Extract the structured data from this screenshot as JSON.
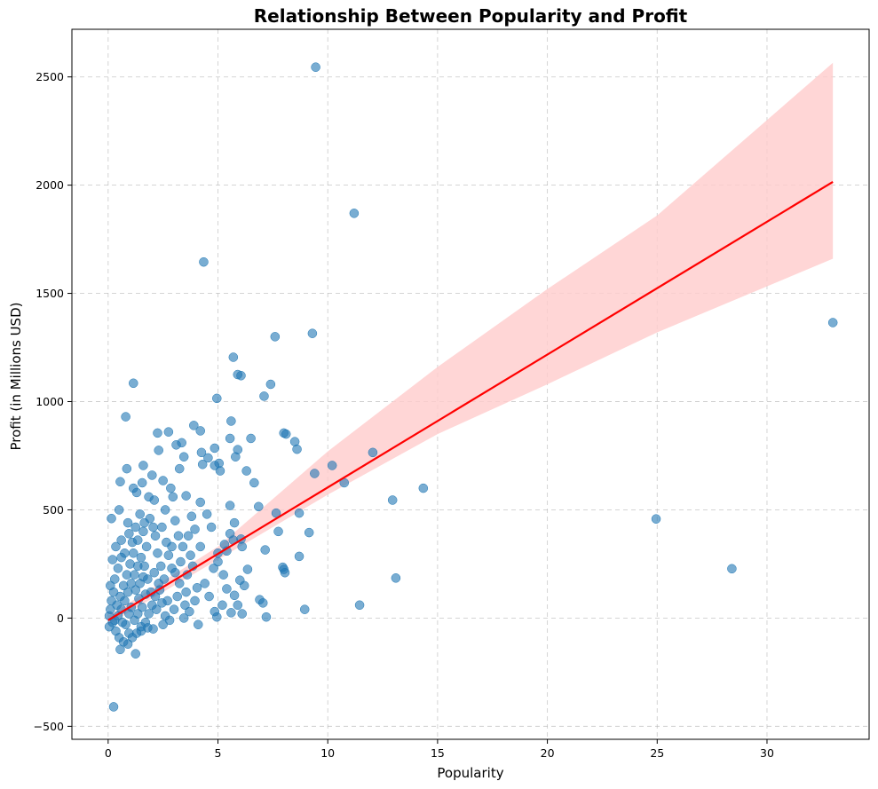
{
  "chart_data": {
    "type": "scatter",
    "title": "Relationship Between Popularity and Profit",
    "xlabel": "Popularity",
    "ylabel": "Profit (in Millions USD)",
    "xlim": [
      -1.65,
      34.65
    ],
    "ylim": [
      -560,
      2720
    ],
    "xticks": [
      0,
      5,
      10,
      15,
      20,
      25,
      30
    ],
    "yticks": [
      -500,
      0,
      500,
      1000,
      1500,
      2000,
      2500
    ],
    "ytick_labels": [
      "−500",
      "0",
      "500",
      "1000",
      "1500",
      "2000",
      "2500"
    ],
    "grid": true,
    "colors": {
      "points": "#1f77b4",
      "regression_line": "#ff0000",
      "confidence_band": "#ffcccc"
    },
    "regression": {
      "x_range": [
        0,
        33
      ],
      "line": [
        [
          0,
          -10
        ],
        [
          33,
          2015
        ]
      ],
      "ci_upper": [
        [
          0,
          10
        ],
        [
          5,
          330
        ],
        [
          10,
          770
        ],
        [
          15,
          1160
        ],
        [
          20,
          1520
        ],
        [
          25,
          1860
        ],
        [
          33,
          2565
        ]
      ],
      "ci_lower": [
        [
          0,
          -30
        ],
        [
          5,
          270
        ],
        [
          10,
          570
        ],
        [
          15,
          850
        ],
        [
          20,
          1080
        ],
        [
          25,
          1320
        ],
        [
          33,
          1660
        ]
      ]
    },
    "points": [
      [
        9.45,
        2545
      ],
      [
        11.2,
        1870
      ],
      [
        4.35,
        1645
      ],
      [
        33.0,
        1365
      ],
      [
        9.3,
        1315
      ],
      [
        7.6,
        1300
      ],
      [
        5.7,
        1205
      ],
      [
        5.9,
        1125
      ],
      [
        6.05,
        1120
      ],
      [
        1.15,
        1085
      ],
      [
        7.4,
        1080
      ],
      [
        7.1,
        1025
      ],
      [
        4.95,
        1015
      ],
      [
        0.8,
        930
      ],
      [
        5.6,
        910
      ],
      [
        3.9,
        890
      ],
      [
        2.25,
        855
      ],
      [
        2.75,
        860
      ],
      [
        4.2,
        865
      ],
      [
        8.1,
        850
      ],
      [
        8.0,
        855
      ],
      [
        6.5,
        830
      ],
      [
        5.55,
        830
      ],
      [
        8.5,
        815
      ],
      [
        3.1,
        800
      ],
      [
        3.35,
        810
      ],
      [
        4.85,
        785
      ],
      [
        8.6,
        780
      ],
      [
        2.3,
        775
      ],
      [
        5.9,
        778
      ],
      [
        4.25,
        765
      ],
      [
        4.55,
        740
      ],
      [
        3.45,
        745
      ],
      [
        5.05,
        715
      ],
      [
        4.3,
        710
      ],
      [
        5.8,
        745
      ],
      [
        4.85,
        705
      ],
      [
        12.05,
        765
      ],
      [
        10.2,
        705
      ],
      [
        1.6,
        705
      ],
      [
        0.85,
        690
      ],
      [
        3.25,
        690
      ],
      [
        5.1,
        680
      ],
      [
        6.3,
        680
      ],
      [
        9.4,
        668
      ],
      [
        2.0,
        660
      ],
      [
        6.65,
        625
      ],
      [
        10.75,
        625
      ],
      [
        0.55,
        630
      ],
      [
        1.55,
        625
      ],
      [
        2.5,
        635
      ],
      [
        1.15,
        600
      ],
      [
        14.35,
        600
      ],
      [
        1.3,
        580
      ],
      [
        12.95,
        545
      ],
      [
        4.2,
        535
      ],
      [
        2.1,
        545
      ],
      [
        1.85,
        560
      ],
      [
        3.55,
        565
      ],
      [
        5.55,
        520
      ],
      [
        6.85,
        515
      ],
      [
        0.15,
        460
      ],
      [
        0.5,
        500
      ],
      [
        7.65,
        485
      ],
      [
        8.7,
        485
      ],
      [
        24.95,
        458
      ],
      [
        5.75,
        440
      ],
      [
        7.75,
        400
      ],
      [
        9.15,
        395
      ],
      [
        5.55,
        390
      ],
      [
        6.05,
        365
      ],
      [
        6.1,
        330
      ],
      [
        7.15,
        315
      ],
      [
        8.7,
        285
      ],
      [
        7.95,
        235
      ],
      [
        8.0,
        225
      ],
      [
        8.05,
        210
      ],
      [
        6.35,
        225
      ],
      [
        6.2,
        150
      ],
      [
        28.4,
        228
      ],
      [
        13.1,
        185
      ],
      [
        6.9,
        85
      ],
      [
        7.05,
        70
      ],
      [
        11.45,
        60
      ],
      [
        8.95,
        40
      ],
      [
        7.2,
        5
      ],
      [
        6.1,
        20
      ],
      [
        5.6,
        25
      ],
      [
        0.25,
        -410
      ],
      [
        1.25,
        -165
      ],
      [
        0.55,
        -145
      ],
      [
        5.0,
        300
      ],
      [
        5.3,
        340
      ],
      [
        5.4,
        310
      ],
      [
        5.7,
        360
      ],
      [
        5.0,
        260
      ],
      [
        4.8,
        230
      ],
      [
        5.25,
        200
      ],
      [
        6.0,
        175
      ],
      [
        5.4,
        135
      ],
      [
        5.75,
        105
      ],
      [
        5.9,
        60
      ],
      [
        5.2,
        60
      ],
      [
        4.85,
        30
      ],
      [
        4.95,
        5
      ],
      [
        4.6,
        100
      ],
      [
        4.4,
        160
      ],
      [
        4.7,
        420
      ],
      [
        4.5,
        480
      ],
      [
        3.8,
        470
      ],
      [
        3.95,
        410
      ],
      [
        4.2,
        330
      ],
      [
        3.75,
        290
      ],
      [
        3.85,
        240
      ],
      [
        3.6,
        200
      ],
      [
        4.05,
        140
      ],
      [
        3.95,
        80
      ],
      [
        3.7,
        30
      ],
      [
        3.45,
        0
      ],
      [
        4.1,
        -30
      ],
      [
        3.55,
        120
      ],
      [
        3.3,
        260
      ],
      [
        3.2,
        380
      ],
      [
        3.05,
        450
      ],
      [
        2.95,
        560
      ],
      [
        2.85,
        600
      ],
      [
        2.6,
        500
      ],
      [
        2.45,
        420
      ],
      [
        2.65,
        350
      ],
      [
        2.75,
        290
      ],
      [
        2.9,
        230
      ],
      [
        2.55,
        180
      ],
      [
        2.35,
        130
      ],
      [
        2.7,
        80
      ],
      [
        2.2,
        40
      ],
      [
        2.5,
        -30
      ],
      [
        2.05,
        -50
      ],
      [
        1.75,
        330
      ],
      [
        1.6,
        400
      ],
      [
        1.45,
        480
      ],
      [
        1.9,
        460
      ],
      [
        2.15,
        380
      ],
      [
        1.35,
        360
      ],
      [
        1.1,
        350
      ],
      [
        0.95,
        390
      ],
      [
        0.75,
        300
      ],
      [
        0.6,
        280
      ],
      [
        0.45,
        230
      ],
      [
        0.3,
        180
      ],
      [
        0.25,
        120
      ],
      [
        0.15,
        80
      ],
      [
        0.1,
        40
      ],
      [
        0.05,
        10
      ],
      [
        0.2,
        -20
      ],
      [
        0.35,
        -60
      ],
      [
        0.5,
        -90
      ],
      [
        0.7,
        -110
      ],
      [
        0.9,
        -120
      ],
      [
        1.1,
        -90
      ],
      [
        1.3,
        -70
      ],
      [
        1.5,
        -40
      ],
      [
        1.7,
        -20
      ],
      [
        1.85,
        20
      ],
      [
        2.0,
        60
      ],
      [
        1.95,
        120
      ],
      [
        1.8,
        180
      ],
      [
        1.65,
        240
      ],
      [
        1.5,
        280
      ],
      [
        1.35,
        240
      ],
      [
        1.2,
        200
      ],
      [
        1.05,
        160
      ],
      [
        0.9,
        120
      ],
      [
        0.75,
        80
      ],
      [
        0.6,
        40
      ],
      [
        0.45,
        10
      ],
      [
        0.3,
        -10
      ],
      [
        0.4,
        60
      ],
      [
        0.55,
        100
      ],
      [
        0.7,
        150
      ],
      [
        0.85,
        200
      ],
      [
        1.0,
        250
      ],
      [
        1.15,
        300
      ],
      [
        1.25,
        130
      ],
      [
        1.4,
        90
      ],
      [
        1.55,
        50
      ],
      [
        1.7,
        110
      ],
      [
        1.45,
        160
      ],
      [
        1.6,
        190
      ],
      [
        1.05,
        50
      ],
      [
        0.95,
        20
      ],
      [
        0.8,
        -30
      ],
      [
        0.65,
        -20
      ],
      [
        1.2,
        -10
      ],
      [
        1.35,
        20
      ],
      [
        2.25,
        300
      ],
      [
        2.4,
        240
      ],
      [
        2.1,
        210
      ],
      [
        2.3,
        160
      ],
      [
        2.15,
        100
      ],
      [
        2.45,
        70
      ],
      [
        2.6,
        10
      ],
      [
        2.8,
        -10
      ],
      [
        3.0,
        40
      ],
      [
        3.15,
        100
      ],
      [
        3.25,
        160
      ],
      [
        3.05,
        210
      ],
      [
        3.4,
        330
      ],
      [
        3.5,
        60
      ],
      [
        3.65,
        380
      ],
      [
        2.9,
        330
      ],
      [
        0.35,
        330
      ],
      [
        0.6,
        360
      ],
      [
        0.9,
        440
      ],
      [
        1.25,
        420
      ],
      [
        1.65,
        440
      ],
      [
        2.05,
        420
      ],
      [
        0.2,
        270
      ],
      [
        0.1,
        150
      ],
      [
        0.05,
        -40
      ],
      [
        0.95,
        -70
      ],
      [
        1.5,
        -60
      ],
      [
        1.8,
        -45
      ]
    ]
  }
}
